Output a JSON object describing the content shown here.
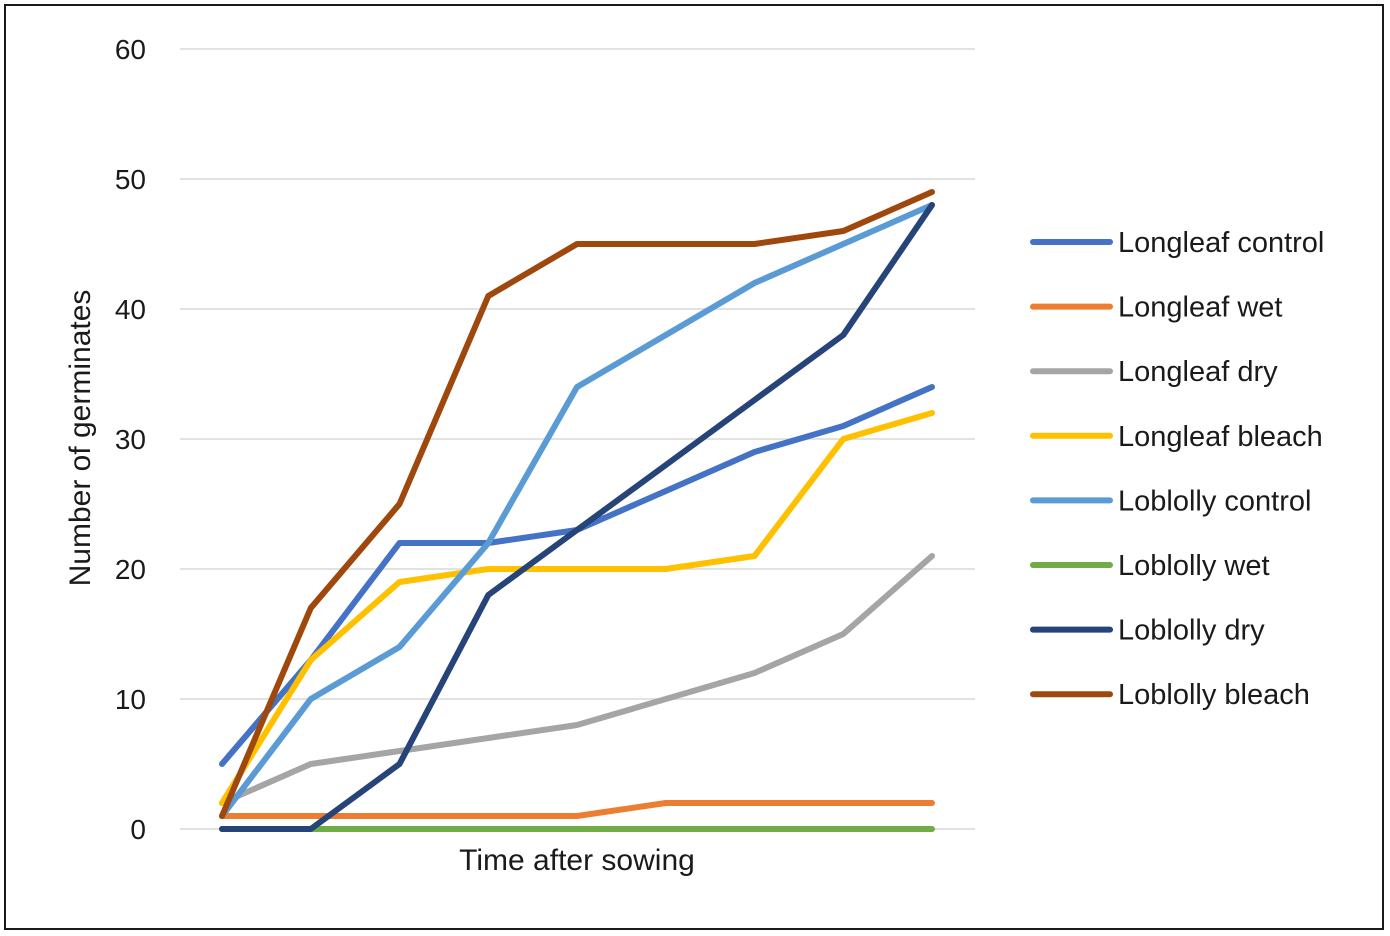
{
  "chart_data": {
    "type": "line",
    "title": "",
    "xlabel": "Time after sowing",
    "ylabel": "Number of germinates",
    "ylim": [
      0,
      60
    ],
    "yticks": [
      0,
      10,
      20,
      30,
      40,
      50,
      60
    ],
    "grid": true,
    "legend_position": "right",
    "x": [
      1,
      2,
      3,
      4,
      5,
      6,
      7,
      8,
      9
    ],
    "series": [
      {
        "name": "Longleaf control",
        "color": "#4472C4",
        "values": [
          5,
          13,
          22,
          22,
          23,
          26,
          29,
          31,
          34
        ]
      },
      {
        "name": "Longleaf wet",
        "color": "#ED7D31",
        "values": [
          1,
          1,
          1,
          1,
          1,
          2,
          2,
          2,
          2
        ]
      },
      {
        "name": "Longleaf dry",
        "color": "#A5A5A5",
        "values": [
          2,
          5,
          6,
          7,
          8,
          10,
          12,
          15,
          21
        ]
      },
      {
        "name": "Longleaf bleach",
        "color": "#FFC000",
        "values": [
          2,
          13,
          19,
          20,
          20,
          20,
          21,
          30,
          32
        ]
      },
      {
        "name": "Loblolly control",
        "color": "#5B9BD5",
        "values": [
          1,
          10,
          14,
          22,
          34,
          38,
          42,
          45,
          48
        ]
      },
      {
        "name": "Loblolly wet",
        "color": "#70AD47",
        "values": [
          0,
          0,
          0,
          0,
          0,
          0,
          0,
          0,
          0
        ]
      },
      {
        "name": "Loblolly dry",
        "color": "#264478",
        "values": [
          0,
          0,
          5,
          18,
          23,
          28,
          33,
          38,
          48
        ]
      },
      {
        "name": "Loblolly bleach",
        "color": "#9E480E",
        "values": [
          1,
          17,
          25,
          41,
          45,
          45,
          45,
          46,
          49
        ]
      }
    ]
  }
}
